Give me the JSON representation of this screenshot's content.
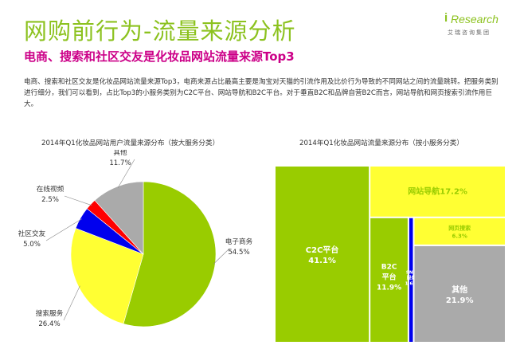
{
  "header": {
    "title": "网购前行为-流量来源分析",
    "subtitle": "电商、搜索和社区交友是化妆品网站流量来源Top3",
    "paragraph": "电商、搜索和社区交友是化妆品网站流量来源Top3，电商来源占比最高主要是淘宝对天猫的引流作用及比价行为导致的不同网站之间的流量跳转。把服务类别进行细分，我们可以看到，占比Top3的小服务类别为C2C平台、网站导航和B2C平台。对于垂直B2C和品牌自营B2C而言，网站导航和网页搜索引流作用巨大。"
  },
  "logo": {
    "mark": "i",
    "brand": "Research",
    "sub": "艾瑞咨询集团"
  },
  "chart_data": [
    {
      "type": "pie",
      "title": "2014年Q1化妆品网站用户流量来源分布（按大服务分类）",
      "slices": [
        {
          "label": "电子商务",
          "value": 54.5,
          "value_label": "54.5%",
          "color": "#99cc00"
        },
        {
          "label": "搜索服务",
          "value": 26.4,
          "value_label": "26.4%",
          "color": "#ffff33"
        },
        {
          "label": "社区交友",
          "value": 5.0,
          "value_label": "5.0%",
          "color": "#0000ee"
        },
        {
          "label": "在线视频",
          "value": 2.5,
          "value_label": "2.5%",
          "color": "#ff0000"
        },
        {
          "label": "其他",
          "value": 11.7,
          "value_label": "11.7%",
          "color": "#aaaaaa"
        }
      ]
    },
    {
      "type": "treemap",
      "title": "2014年Q1化妆品网站流量来源分布（按小服务分类）",
      "cells": [
        {
          "label": "C2C平台",
          "value": 41.1,
          "value_label": "41.1%",
          "color": "#99cc00"
        },
        {
          "label": "网站导航",
          "value": 17.2,
          "value_label": "17.2%",
          "color": "#ffff33"
        },
        {
          "label": "网页搜索",
          "value": 6.3,
          "value_label": "6.3%",
          "color": "#ffff33"
        },
        {
          "label": "B2C平台",
          "value": 11.9,
          "value_label": "11.9%",
          "color": "#99cc00"
        },
        {
          "label": "SNS服务",
          "value": 1.6,
          "value_label": "1.6%",
          "color": "#0000ee"
        },
        {
          "label": "其他",
          "value": 21.9,
          "value_label": "21.9%",
          "color": "#aaaaaa"
        }
      ]
    }
  ]
}
